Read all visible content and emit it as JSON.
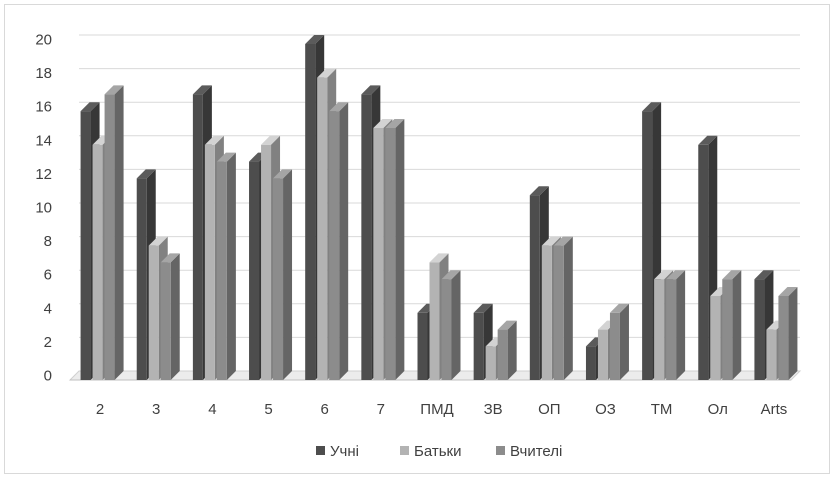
{
  "chart_data": {
    "type": "bar",
    "style": "3d-clustered-column",
    "categories": [
      "2",
      "3",
      "4",
      "5",
      "6",
      "7",
      "ПМД",
      "ЗВ",
      "ОП",
      "ОЗ",
      "ТМ",
      "Ол",
      "Arts"
    ],
    "series": [
      {
        "name": "Учні",
        "color": "#4d4d4d",
        "values": [
          16,
          12,
          17,
          13,
          20,
          17,
          4,
          4,
          11,
          2,
          16,
          14,
          6
        ]
      },
      {
        "name": "Батьки",
        "color": "#b3b3b3",
        "values": [
          14,
          8,
          14,
          14,
          18,
          15,
          7,
          2,
          8,
          3,
          6,
          5,
          3
        ]
      },
      {
        "name": "Вчителі",
        "color": "#8c8c8c",
        "values": [
          17,
          7,
          13,
          12,
          16,
          15,
          6,
          3,
          8,
          4,
          6,
          6,
          5
        ]
      }
    ],
    "ylim": [
      0,
      20
    ],
    "yticks": [
      "0",
      "2",
      "4",
      "6",
      "8",
      "10",
      "12",
      "14",
      "16",
      "18",
      "20"
    ],
    "grid": true,
    "legend_position": "bottom"
  }
}
